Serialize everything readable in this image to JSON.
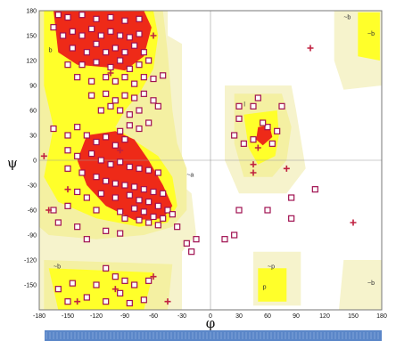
{
  "chart_data": {
    "type": "scatter",
    "title": "",
    "xlabel": "φ",
    "ylabel": "ψ",
    "xlim": [
      -180,
      180
    ],
    "ylim": [
      -180,
      180
    ],
    "x_ticks": [
      -180,
      -150,
      -120,
      -90,
      -60,
      -30,
      0,
      30,
      60,
      90,
      120,
      150,
      180
    ],
    "y_ticks": [
      180,
      150,
      120,
      90,
      60,
      30,
      0,
      -30,
      -60,
      -90,
      -120,
      -150
    ],
    "colors": {
      "core": "#ee2a18",
      "allowed": "#ffff2a",
      "generous": "#f4f0a2",
      "faint": "#f6f3cc",
      "residue_fill": "#ffffff",
      "residue_edge": "#a01050",
      "glycine": "#c02040",
      "bottom_bar": "#5a86c8"
    },
    "region_labels": [
      {
        "text": "b",
        "phi": -170,
        "psi": 130
      },
      {
        "text": "~b",
        "phi": 140,
        "psi": 170
      },
      {
        "text": "~b",
        "phi": 165,
        "psi": 150
      },
      {
        "text": "~b",
        "phi": 165,
        "psi": -150
      },
      {
        "text": "~b",
        "phi": -165,
        "psi": -130
      },
      {
        "text": "l",
        "phi": 35,
        "psi": 65
      },
      {
        "text": "~a",
        "phi": -25,
        "psi": -20
      },
      {
        "text": "~p",
        "phi": 60,
        "psi": -130
      },
      {
        "text": "p",
        "phi": 55,
        "psi": -155
      }
    ],
    "series": [
      {
        "marker": "square",
        "points": [
          [
            -160,
            175
          ],
          [
            -150,
            172
          ],
          [
            -135,
            175
          ],
          [
            -120,
            170
          ],
          [
            -105,
            172
          ],
          [
            -90,
            168
          ],
          [
            -75,
            170
          ],
          [
            -165,
            160
          ],
          [
            -155,
            150
          ],
          [
            -145,
            155
          ],
          [
            -135,
            150
          ],
          [
            -125,
            158
          ],
          [
            -115,
            150
          ],
          [
            -105,
            155
          ],
          [
            -95,
            150
          ],
          [
            -85,
            148
          ],
          [
            -75,
            152
          ],
          [
            -145,
            135
          ],
          [
            -130,
            130
          ],
          [
            -120,
            140
          ],
          [
            -110,
            130
          ],
          [
            -100,
            135
          ],
          [
            -90,
            130
          ],
          [
            -80,
            138
          ],
          [
            -70,
            130
          ],
          [
            -150,
            115
          ],
          [
            -135,
            115
          ],
          [
            -120,
            118
          ],
          [
            -105,
            112
          ],
          [
            -95,
            120
          ],
          [
            -85,
            110
          ],
          [
            -75,
            115
          ],
          [
            -65,
            120
          ],
          [
            -140,
            100
          ],
          [
            -125,
            95
          ],
          [
            -110,
            100
          ],
          [
            -100,
            95
          ],
          [
            -90,
            100
          ],
          [
            -80,
            92
          ],
          [
            -70,
            100
          ],
          [
            -60,
            98
          ],
          [
            -50,
            102
          ],
          [
            -125,
            78
          ],
          [
            -110,
            80
          ],
          [
            -100,
            72
          ],
          [
            -90,
            78
          ],
          [
            -80,
            75
          ],
          [
            -70,
            80
          ],
          [
            -60,
            72
          ],
          [
            -55,
            65
          ],
          [
            -75,
            60
          ],
          [
            -85,
            55
          ],
          [
            -95,
            60
          ],
          [
            -105,
            65
          ],
          [
            -115,
            60
          ],
          [
            -65,
            45
          ],
          [
            -75,
            38
          ],
          [
            -85,
            42
          ],
          [
            -95,
            35
          ],
          [
            -140,
            40
          ],
          [
            -150,
            30
          ],
          [
            -165,
            38
          ],
          [
            -130,
            30
          ],
          [
            -120,
            22
          ],
          [
            -110,
            28
          ],
          [
            -100,
            18
          ],
          [
            -90,
            25
          ],
          [
            -150,
            12
          ],
          [
            -140,
            5
          ],
          [
            -125,
            8
          ],
          [
            -115,
            0
          ],
          [
            -105,
            -5
          ],
          [
            -95,
            -2
          ],
          [
            -85,
            -8
          ],
          [
            -75,
            -10
          ],
          [
            -65,
            -12
          ],
          [
            -55,
            -15
          ],
          [
            -150,
            -10
          ],
          [
            -135,
            -15
          ],
          [
            -120,
            -20
          ],
          [
            -110,
            -25
          ],
          [
            -100,
            -28
          ],
          [
            -90,
            -30
          ],
          [
            -80,
            -32
          ],
          [
            -70,
            -35
          ],
          [
            -60,
            -38
          ],
          [
            -50,
            -40
          ],
          [
            -140,
            -38
          ],
          [
            -130,
            -45
          ],
          [
            -115,
            -40
          ],
          [
            -100,
            -45
          ],
          [
            -85,
            -42
          ],
          [
            -75,
            -48
          ],
          [
            -65,
            -50
          ],
          [
            -55,
            -55
          ],
          [
            -45,
            -60
          ],
          [
            -150,
            -55
          ],
          [
            -165,
            -60
          ],
          [
            -120,
            -60
          ],
          [
            -95,
            -62
          ],
          [
            -80,
            -58
          ],
          [
            -70,
            -62
          ],
          [
            -60,
            -68
          ],
          [
            -50,
            -70
          ],
          [
            -40,
            -65
          ],
          [
            -90,
            -70
          ],
          [
            -75,
            -72
          ],
          [
            -65,
            -75
          ],
          [
            -55,
            -78
          ],
          [
            -140,
            -80
          ],
          [
            -160,
            -75
          ],
          [
            -110,
            -85
          ],
          [
            -95,
            -88
          ],
          [
            -130,
            -95
          ],
          [
            -35,
            -80
          ],
          [
            -25,
            -100
          ],
          [
            -20,
            -110
          ],
          [
            -15,
            -95
          ],
          [
            -110,
            -130
          ],
          [
            -100,
            -140
          ],
          [
            -120,
            -150
          ],
          [
            -90,
            -145
          ],
          [
            -80,
            -150
          ],
          [
            -65,
            -145
          ],
          [
            -130,
            -165
          ],
          [
            -110,
            -170
          ],
          [
            -95,
            -160
          ],
          [
            -85,
            -172
          ],
          [
            -70,
            -168
          ],
          [
            -150,
            -170
          ],
          [
            -160,
            -155
          ],
          [
            -145,
            -148
          ],
          [
            30,
            65
          ],
          [
            30,
            50
          ],
          [
            25,
            30
          ],
          [
            35,
            20
          ],
          [
            45,
            25
          ],
          [
            60,
            40
          ],
          [
            70,
            35
          ],
          [
            65,
            20
          ],
          [
            55,
            45
          ],
          [
            45,
            65
          ],
          [
            50,
            75
          ],
          [
            75,
            65
          ],
          [
            60,
            -60
          ],
          [
            30,
            -60
          ],
          [
            25,
            -90
          ],
          [
            15,
            -95
          ],
          [
            85,
            -45
          ],
          [
            110,
            -35
          ],
          [
            85,
            -70
          ]
        ]
      },
      {
        "marker": "cross",
        "points": [
          [
            -175,
            5
          ],
          [
            -170,
            -60
          ],
          [
            -150,
            -35
          ],
          [
            -105,
            105
          ],
          [
            -95,
            12
          ],
          [
            -60,
            150
          ],
          [
            -45,
            -170
          ],
          [
            -140,
            -170
          ],
          [
            -100,
            -155
          ],
          [
            -60,
            -140
          ],
          [
            105,
            135
          ],
          [
            150,
            -75
          ],
          [
            80,
            -10
          ],
          [
            45,
            -15
          ],
          [
            50,
            15
          ],
          [
            45,
            -5
          ]
        ]
      }
    ],
    "bottom_bar": true
  }
}
